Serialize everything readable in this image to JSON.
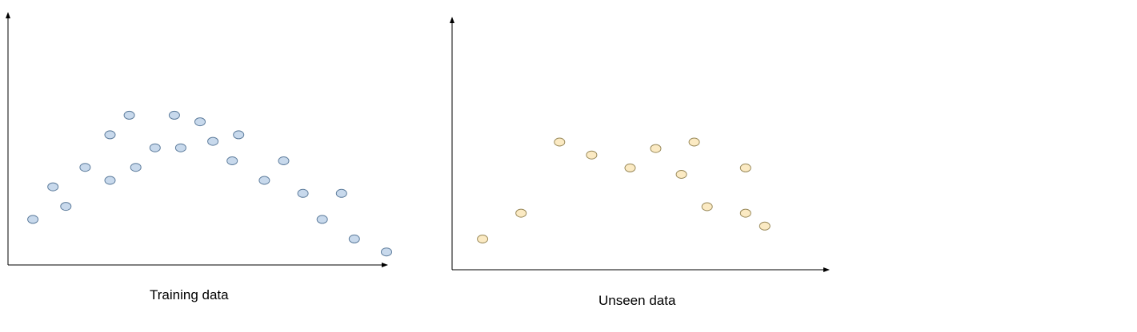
{
  "chart_data": [
    {
      "type": "scatter",
      "title": "",
      "caption": "Training data",
      "xlabel": "",
      "ylabel": "",
      "xlim": [
        0,
        472
      ],
      "ylim": [
        0,
        310
      ],
      "grid": false,
      "colors": {
        "fill": "#c8d9ec",
        "stroke": "#5d7c9c",
        "axis": "#000000"
      },
      "points": [
        {
          "x": 31,
          "y": 56
        },
        {
          "x": 56,
          "y": 96
        },
        {
          "x": 72,
          "y": 72
        },
        {
          "x": 96,
          "y": 120
        },
        {
          "x": 127,
          "y": 104
        },
        {
          "x": 127,
          "y": 160
        },
        {
          "x": 151,
          "y": 184
        },
        {
          "x": 159,
          "y": 120
        },
        {
          "x": 183,
          "y": 144
        },
        {
          "x": 207,
          "y": 184
        },
        {
          "x": 215,
          "y": 144
        },
        {
          "x": 239,
          "y": 176
        },
        {
          "x": 255,
          "y": 152
        },
        {
          "x": 279,
          "y": 128
        },
        {
          "x": 287,
          "y": 160
        },
        {
          "x": 319,
          "y": 104
        },
        {
          "x": 343,
          "y": 128
        },
        {
          "x": 367,
          "y": 88
        },
        {
          "x": 391,
          "y": 56
        },
        {
          "x": 415,
          "y": 88
        },
        {
          "x": 431,
          "y": 32
        },
        {
          "x": 471,
          "y": 16
        }
      ]
    },
    {
      "type": "scatter",
      "title": "",
      "caption": "Unseen data",
      "xlabel": "",
      "ylabel": "",
      "xlim": [
        0,
        470
      ],
      "ylim": [
        0,
        312
      ],
      "grid": false,
      "colors": {
        "fill": "#fbeac3",
        "stroke": "#9a8a5a",
        "axis": "#000000"
      },
      "points": [
        {
          "x": 38,
          "y": 38
        },
        {
          "x": 86,
          "y": 70
        },
        {
          "x": 134,
          "y": 158
        },
        {
          "x": 174,
          "y": 142
        },
        {
          "x": 222,
          "y": 126
        },
        {
          "x": 254,
          "y": 150
        },
        {
          "x": 286,
          "y": 118
        },
        {
          "x": 302,
          "y": 158
        },
        {
          "x": 318,
          "y": 78
        },
        {
          "x": 366,
          "y": 126
        },
        {
          "x": 366,
          "y": 70
        },
        {
          "x": 390,
          "y": 54
        }
      ]
    }
  ]
}
